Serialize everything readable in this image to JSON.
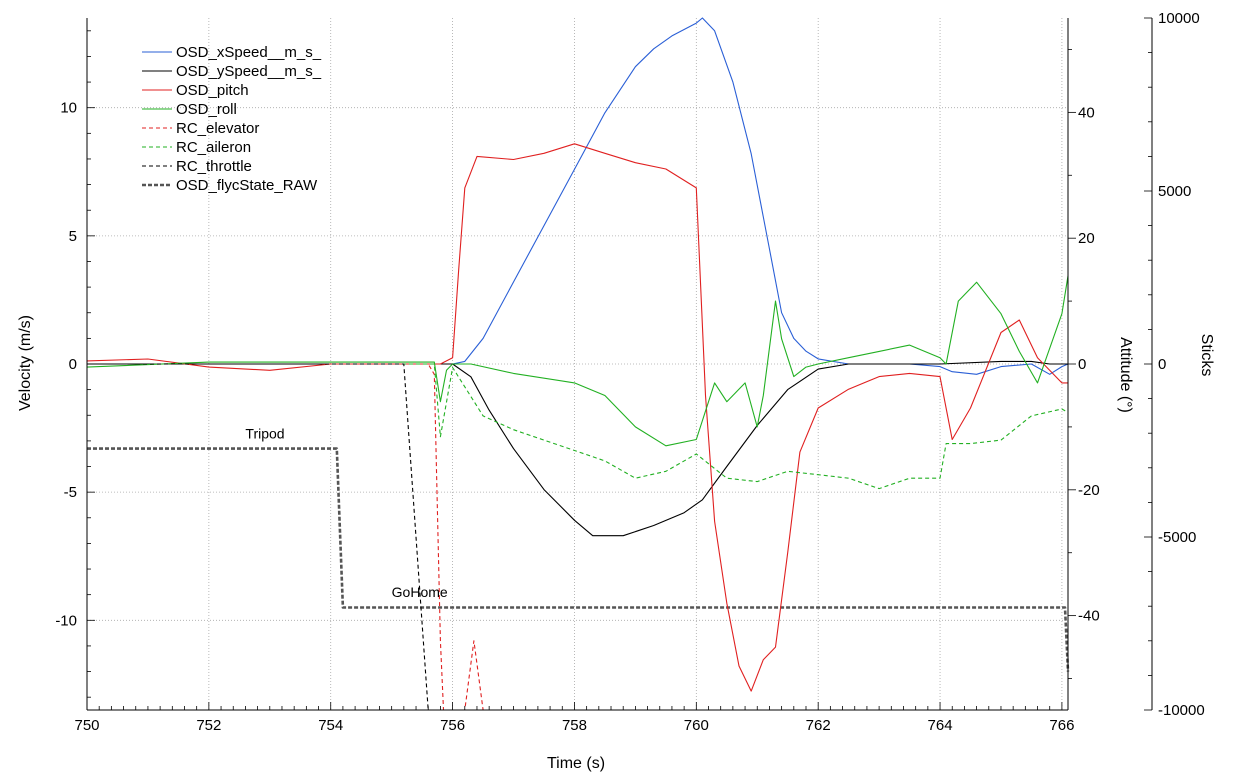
{
  "chart_data": {
    "type": "line",
    "xlabel": "Time (s)",
    "xlim": [
      750,
      766.1
    ],
    "x_ticks": [
      750,
      752,
      754,
      756,
      758,
      760,
      762,
      764,
      766
    ],
    "y_left": {
      "label": "Velocity (m/s)",
      "lim": [
        -13.5,
        13.5
      ],
      "ticks": [
        10,
        5,
        0,
        -5,
        -10
      ]
    },
    "y_right1": {
      "label": "Attitude (°)",
      "lim": [
        -55,
        55
      ],
      "ticks": [
        40,
        20,
        0,
        -20,
        -40
      ]
    },
    "y_right2": {
      "label": "Sticks",
      "lim": [
        -10000,
        10000
      ],
      "ticks": [
        10000,
        5000,
        0,
        -5000,
        -10000
      ]
    },
    "grid": true,
    "legend_position": "top-left",
    "colors": {
      "blue": "#2a5fd6",
      "black": "#000000",
      "red": "#e02020",
      "green": "#22b022",
      "grey": "#555555"
    },
    "series": [
      {
        "name": "OSD_xSpeed__m_s_",
        "axis": "left",
        "color": "#2a5fd6",
        "dash": "solid",
        "x": [
          750,
          752,
          754,
          755.5,
          756,
          756.2,
          756.5,
          757,
          757.5,
          758,
          758.5,
          759,
          759.3,
          759.6,
          760,
          760.1,
          760.3,
          760.6,
          760.9,
          761.2,
          761.4,
          761.6,
          761.8,
          762,
          762.5,
          763,
          763.5,
          764,
          764.2,
          764.6,
          765,
          765.5,
          765.8,
          766,
          766.1
        ],
        "y": [
          0,
          0,
          0,
          0,
          0,
          0.1,
          1.0,
          3.2,
          5.4,
          7.6,
          9.8,
          11.6,
          12.3,
          12.8,
          13.3,
          13.5,
          13.0,
          11.0,
          8.2,
          4.5,
          2.0,
          1.0,
          0.5,
          0.2,
          0.0,
          0.0,
          0.0,
          -0.1,
          -0.3,
          -0.4,
          -0.1,
          0.0,
          -0.4,
          -0.1,
          0.0
        ]
      },
      {
        "name": "OSD_ySpeed__m_s_",
        "axis": "left",
        "color": "#000000",
        "dash": "solid",
        "x": [
          750,
          754,
          756,
          756.3,
          756.6,
          757,
          757.5,
          758,
          758.3,
          758.8,
          759.3,
          759.8,
          760.1,
          760.5,
          761,
          761.5,
          762,
          762.5,
          763,
          764,
          765,
          765.5,
          765.8,
          766.1
        ],
        "y": [
          0,
          0,
          0,
          -0.5,
          -1.8,
          -3.3,
          -4.9,
          -6.1,
          -6.7,
          -6.7,
          -6.3,
          -5.8,
          -5.3,
          -4.0,
          -2.4,
          -1.0,
          -0.2,
          0.0,
          0.0,
          0.0,
          0.1,
          0.1,
          0.0,
          0.0
        ]
      },
      {
        "name": "OSD_pitch",
        "axis": "right1",
        "color": "#e02020",
        "dash": "solid",
        "x": [
          750,
          751,
          752,
          753,
          754,
          755,
          755.8,
          756,
          756.1,
          756.2,
          756.4,
          757,
          757.5,
          758,
          758.5,
          759,
          759.5,
          760,
          760.15,
          760.3,
          760.5,
          760.7,
          760.9,
          761.1,
          761.3,
          761.5,
          761.7,
          762,
          762.5,
          763,
          763.5,
          764,
          764.2,
          764.5,
          765,
          765.3,
          765.6,
          766,
          766.1
        ],
        "y": [
          0.5,
          0.8,
          -0.5,
          -1.0,
          0,
          0,
          0,
          1,
          15,
          28,
          33,
          32.5,
          33.5,
          35,
          33.5,
          32,
          31,
          28,
          -5,
          -25,
          -38,
          -48,
          -52,
          -47,
          -45,
          -30,
          -14,
          -7,
          -4,
          -2,
          -1.5,
          -2,
          -12,
          -7,
          5,
          7,
          1,
          -3,
          -3
        ]
      },
      {
        "name": "OSD_roll",
        "axis": "right1",
        "color": "#22b022",
        "dash": "solid",
        "x": [
          750,
          752,
          754,
          755.7,
          755.8,
          755.9,
          756,
          756.3,
          757,
          758,
          758.5,
          759,
          759.5,
          760,
          760.3,
          760.5,
          760.8,
          761,
          761.1,
          761.3,
          761.4,
          761.6,
          761.8,
          762,
          762.5,
          763,
          763.5,
          764,
          764.1,
          764.3,
          764.6,
          765,
          765.3,
          765.6,
          766,
          766.1
        ],
        "y": [
          -0.5,
          0.3,
          0.3,
          0.3,
          -6,
          -1,
          0,
          0,
          -1.5,
          -3,
          -5,
          -10,
          -13,
          -12,
          -3,
          -6,
          -3,
          -10,
          -5,
          10,
          4,
          -2,
          -0.5,
          0,
          1,
          2,
          3,
          1,
          0,
          10,
          13,
          8,
          2,
          -3,
          8,
          14
        ]
      },
      {
        "name": "RC_elevator",
        "axis": "right2",
        "color": "#e02020",
        "dash": "dashed",
        "x": [
          750,
          755.6,
          755.7,
          755.8,
          755.85,
          756.0,
          756.2,
          756.35,
          756.5,
          756.6,
          766.1
        ],
        "y": [
          0,
          0,
          -300,
          -8000,
          -10000,
          -10000,
          -10000,
          -8000,
          -10000,
          -10000,
          -10000
        ]
      },
      {
        "name": "RC_aileron",
        "axis": "right2",
        "color": "#22b022",
        "dash": "dashed",
        "x": [
          750,
          755.7,
          755.8,
          756,
          756.5,
          757,
          757.5,
          758,
          758.5,
          759,
          759.5,
          760,
          760.5,
          761,
          761.5,
          762,
          762.5,
          763,
          763.5,
          764,
          764.1,
          764.5,
          765,
          765.5,
          766,
          766.1
        ],
        "y": [
          0,
          0,
          -2100,
          -100,
          -1500,
          -1900,
          -2200,
          -2500,
          -2800,
          -3300,
          -3100,
          -2600,
          -3300,
          -3400,
          -3100,
          -3200,
          -3300,
          -3600,
          -3300,
          -3300,
          -2300,
          -2300,
          -2200,
          -1500,
          -1300,
          -1400
        ]
      },
      {
        "name": "RC_throttle",
        "axis": "right2",
        "color": "#000000",
        "dash": "dashed",
        "x": [
          750,
          755.2,
          755.6,
          766.1
        ],
        "y": [
          0,
          0,
          -10000,
          -10000
        ]
      },
      {
        "name": "OSD_flycState_RAW",
        "axis": "left",
        "color": "#555555",
        "dash": "heavy-dashed",
        "x": [
          750,
          754.1,
          754.2,
          766.05,
          766.1
        ],
        "y": [
          -3.3,
          -3.3,
          -9.5,
          -9.5,
          -12
        ]
      }
    ],
    "annotations": [
      {
        "text": "Tripod",
        "x": 752.6,
        "y": -2.9
      },
      {
        "text": "GoHome",
        "x": 755.0,
        "y": -9.1
      }
    ]
  }
}
